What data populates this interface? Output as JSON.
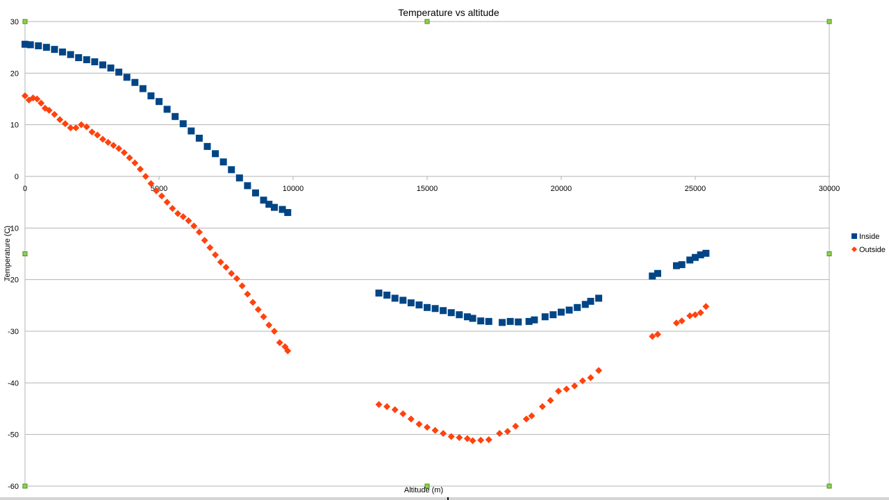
{
  "chart_data": {
    "type": "scatter",
    "title": "Temperature vs altitude",
    "xlabel": "Altitude (m)",
    "ylabel": "Temperature (C)",
    "xlim": [
      0,
      30000
    ],
    "ylim": [
      -60,
      30
    ],
    "xticks": [
      0,
      5000,
      10000,
      15000,
      20000,
      25000,
      30000
    ],
    "yticks": [
      30,
      20,
      10,
      0,
      -10,
      -20,
      -30,
      -40,
      -50,
      -60
    ],
    "grid": true,
    "legend_position": "right",
    "series": [
      {
        "name": "Inside",
        "color": "#004586",
        "marker": "square",
        "points": [
          [
            0,
            25.6
          ],
          [
            200,
            25.5
          ],
          [
            500,
            25.3
          ],
          [
            800,
            25.0
          ],
          [
            1100,
            24.6
          ],
          [
            1400,
            24.1
          ],
          [
            1700,
            23.6
          ],
          [
            2000,
            23.0
          ],
          [
            2300,
            22.6
          ],
          [
            2600,
            22.2
          ],
          [
            2900,
            21.6
          ],
          [
            3200,
            21.0
          ],
          [
            3500,
            20.2
          ],
          [
            3800,
            19.2
          ],
          [
            4100,
            18.2
          ],
          [
            4400,
            17.0
          ],
          [
            4700,
            15.6
          ],
          [
            5000,
            14.5
          ],
          [
            5300,
            13.0
          ],
          [
            5600,
            11.6
          ],
          [
            5900,
            10.2
          ],
          [
            6200,
            8.8
          ],
          [
            6500,
            7.4
          ],
          [
            6800,
            5.8
          ],
          [
            7100,
            4.4
          ],
          [
            7400,
            2.8
          ],
          [
            7700,
            1.3
          ],
          [
            8000,
            -0.3
          ],
          [
            8300,
            -1.8
          ],
          [
            8600,
            -3.2
          ],
          [
            8900,
            -4.6
          ],
          [
            9100,
            -5.4
          ],
          [
            9300,
            -6.0
          ],
          [
            9600,
            -6.4
          ],
          [
            9800,
            -7.0
          ],
          [
            13200,
            -22.6
          ],
          [
            13500,
            -23.0
          ],
          [
            13800,
            -23.6
          ],
          [
            14100,
            -24.0
          ],
          [
            14400,
            -24.5
          ],
          [
            14700,
            -24.9
          ],
          [
            15000,
            -25.4
          ],
          [
            15300,
            -25.6
          ],
          [
            15600,
            -26.0
          ],
          [
            15900,
            -26.4
          ],
          [
            16200,
            -26.8
          ],
          [
            16500,
            -27.2
          ],
          [
            16700,
            -27.5
          ],
          [
            17000,
            -28.0
          ],
          [
            17300,
            -28.1
          ],
          [
            17800,
            -28.3
          ],
          [
            18100,
            -28.1
          ],
          [
            18400,
            -28.2
          ],
          [
            18800,
            -28.1
          ],
          [
            19000,
            -27.8
          ],
          [
            19400,
            -27.2
          ],
          [
            19700,
            -26.8
          ],
          [
            20000,
            -26.3
          ],
          [
            20300,
            -25.9
          ],
          [
            20600,
            -25.4
          ],
          [
            20900,
            -24.8
          ],
          [
            21100,
            -24.2
          ],
          [
            21400,
            -23.6
          ],
          [
            23400,
            -19.3
          ],
          [
            23600,
            -18.8
          ],
          [
            24300,
            -17.3
          ],
          [
            24500,
            -17.1
          ],
          [
            24800,
            -16.2
          ],
          [
            25000,
            -15.7
          ],
          [
            25200,
            -15.2
          ],
          [
            25400,
            -14.9
          ]
        ]
      },
      {
        "name": "Outside",
        "color": "#ff420e",
        "marker": "diamond",
        "points": [
          [
            0,
            15.6
          ],
          [
            150,
            14.8
          ],
          [
            300,
            15.2
          ],
          [
            450,
            15.0
          ],
          [
            600,
            14.2
          ],
          [
            750,
            13.2
          ],
          [
            900,
            12.8
          ],
          [
            1100,
            12.0
          ],
          [
            1300,
            11.0
          ],
          [
            1500,
            10.2
          ],
          [
            1700,
            9.4
          ],
          [
            1900,
            9.4
          ],
          [
            2100,
            10.0
          ],
          [
            2300,
            9.6
          ],
          [
            2500,
            8.6
          ],
          [
            2700,
            8.0
          ],
          [
            2900,
            7.2
          ],
          [
            3100,
            6.6
          ],
          [
            3300,
            6.0
          ],
          [
            3500,
            5.4
          ],
          [
            3700,
            4.6
          ],
          [
            3900,
            3.6
          ],
          [
            4100,
            2.6
          ],
          [
            4300,
            1.4
          ],
          [
            4500,
            0.0
          ],
          [
            4700,
            -1.4
          ],
          [
            4900,
            -2.8
          ],
          [
            5100,
            -3.8
          ],
          [
            5300,
            -5.0
          ],
          [
            5500,
            -6.2
          ],
          [
            5700,
            -7.2
          ],
          [
            5900,
            -7.8
          ],
          [
            6100,
            -8.6
          ],
          [
            6300,
            -9.6
          ],
          [
            6500,
            -10.8
          ],
          [
            6700,
            -12.4
          ],
          [
            6900,
            -13.8
          ],
          [
            7100,
            -15.2
          ],
          [
            7300,
            -16.6
          ],
          [
            7500,
            -17.6
          ],
          [
            7700,
            -18.8
          ],
          [
            7900,
            -19.8
          ],
          [
            8100,
            -21.2
          ],
          [
            8300,
            -22.8
          ],
          [
            8500,
            -24.4
          ],
          [
            8700,
            -25.8
          ],
          [
            8900,
            -27.2
          ],
          [
            9100,
            -28.8
          ],
          [
            9300,
            -30.0
          ],
          [
            9500,
            -32.2
          ],
          [
            9700,
            -33.0
          ],
          [
            9800,
            -33.8
          ],
          [
            13200,
            -44.2
          ],
          [
            13500,
            -44.6
          ],
          [
            13800,
            -45.2
          ],
          [
            14100,
            -46.0
          ],
          [
            14400,
            -47.0
          ],
          [
            14700,
            -48.0
          ],
          [
            15000,
            -48.6
          ],
          [
            15300,
            -49.2
          ],
          [
            15600,
            -49.8
          ],
          [
            15900,
            -50.4
          ],
          [
            16200,
            -50.6
          ],
          [
            16500,
            -50.8
          ],
          [
            16700,
            -51.2
          ],
          [
            17000,
            -51.1
          ],
          [
            17300,
            -51.0
          ],
          [
            17700,
            -49.8
          ],
          [
            18000,
            -49.4
          ],
          [
            18300,
            -48.4
          ],
          [
            18700,
            -47.0
          ],
          [
            18900,
            -46.4
          ],
          [
            19300,
            -44.6
          ],
          [
            19600,
            -43.4
          ],
          [
            19900,
            -41.6
          ],
          [
            20200,
            -41.2
          ],
          [
            20500,
            -40.6
          ],
          [
            20800,
            -39.6
          ],
          [
            21100,
            -39.0
          ],
          [
            21400,
            -37.6
          ],
          [
            23400,
            -31.0
          ],
          [
            23600,
            -30.6
          ],
          [
            24300,
            -28.4
          ],
          [
            24500,
            -28.0
          ],
          [
            24800,
            -27.0
          ],
          [
            25000,
            -26.8
          ],
          [
            25200,
            -26.4
          ],
          [
            25400,
            -25.2
          ]
        ]
      }
    ]
  }
}
